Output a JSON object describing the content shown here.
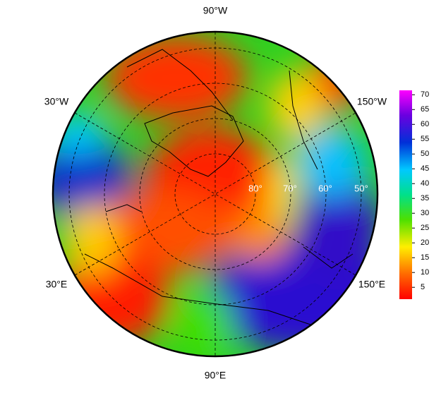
{
  "map": {
    "longitude_labels": [
      "90°W",
      "30°W",
      "150°W",
      "30°E",
      "150°E",
      "90°E"
    ],
    "latitude_labels": [
      "80°",
      "70°",
      "60°",
      "50°"
    ],
    "colorbar": {
      "lim": [
        1,
        71.5
      ],
      "ticks": [
        5,
        10,
        15,
        20,
        25,
        30,
        35,
        40,
        45,
        50,
        55,
        60,
        65,
        70
      ]
    }
  }
}
